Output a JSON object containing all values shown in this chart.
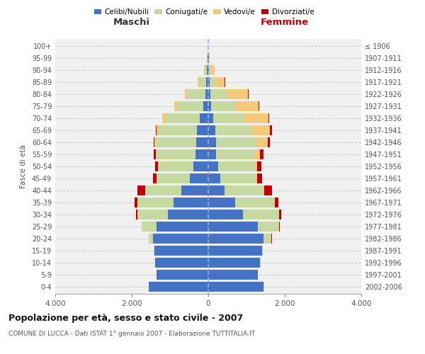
{
  "age_groups": [
    "0-4",
    "5-9",
    "10-14",
    "15-19",
    "20-24",
    "25-29",
    "30-34",
    "35-39",
    "40-44",
    "45-49",
    "50-54",
    "55-59",
    "60-64",
    "65-69",
    "70-74",
    "75-79",
    "80-84",
    "85-89",
    "90-94",
    "95-99",
    "100+"
  ],
  "birth_years": [
    "2002-2006",
    "1997-2001",
    "1992-1996",
    "1987-1991",
    "1982-1986",
    "1977-1981",
    "1972-1976",
    "1967-1971",
    "1962-1966",
    "1957-1961",
    "1952-1956",
    "1947-1951",
    "1942-1946",
    "1937-1941",
    "1932-1936",
    "1927-1931",
    "1922-1926",
    "1917-1921",
    "1912-1916",
    "1907-1911",
    "≤ 1906"
  ],
  "maschi": {
    "celibi": [
      1550,
      1350,
      1380,
      1400,
      1450,
      1350,
      1050,
      900,
      700,
      490,
      380,
      330,
      320,
      290,
      220,
      130,
      80,
      50,
      30,
      15,
      5
    ],
    "coniugati": [
      10,
      5,
      10,
      20,
      100,
      380,
      800,
      950,
      950,
      850,
      920,
      1020,
      1050,
      1000,
      900,
      680,
      480,
      200,
      55,
      20,
      3
    ],
    "vedovi": [
      0,
      0,
      0,
      0,
      5,
      5,
      5,
      5,
      5,
      10,
      15,
      20,
      30,
      60,
      80,
      70,
      50,
      30,
      20,
      5,
      1
    ],
    "divorziati": [
      0,
      0,
      0,
      0,
      5,
      10,
      30,
      80,
      200,
      100,
      80,
      50,
      30,
      20,
      10,
      10,
      10,
      5,
      0,
      0,
      0
    ]
  },
  "femmine": {
    "nubili": [
      1450,
      1300,
      1350,
      1400,
      1450,
      1300,
      900,
      700,
      430,
      320,
      250,
      210,
      200,
      180,
      130,
      80,
      50,
      30,
      20,
      10,
      5
    ],
    "coniugate": [
      10,
      5,
      15,
      30,
      200,
      550,
      950,
      1020,
      1000,
      900,
      950,
      1000,
      1050,
      950,
      820,
      630,
      430,
      150,
      50,
      15,
      3
    ],
    "vedove": [
      0,
      0,
      0,
      0,
      5,
      5,
      10,
      15,
      30,
      60,
      80,
      150,
      300,
      480,
      620,
      600,
      550,
      250,
      100,
      10,
      1
    ],
    "divorziate": [
      0,
      0,
      0,
      0,
      5,
      10,
      50,
      100,
      200,
      120,
      100,
      90,
      70,
      50,
      30,
      30,
      30,
      10,
      5,
      0,
      0
    ]
  },
  "colors": {
    "celibi_nubili": "#4472C4",
    "coniugati": "#C5D9A0",
    "vedovi": "#F5C97A",
    "divorziati": "#C00000"
  },
  "xlim": 4000,
  "title": "Popolazione per età, sesso e stato civile - 2007",
  "subtitle": "COMUNE DI LUCCA - Dati ISTAT 1° gennaio 2007 - Elaborazione TUTTITALIA.IT",
  "ylabel_left": "Fasce di età",
  "xlabel_left": "Maschi",
  "xlabel_right": "Femmine",
  "bg_color": "#f0f0f0",
  "grid_color": "#cccccc"
}
